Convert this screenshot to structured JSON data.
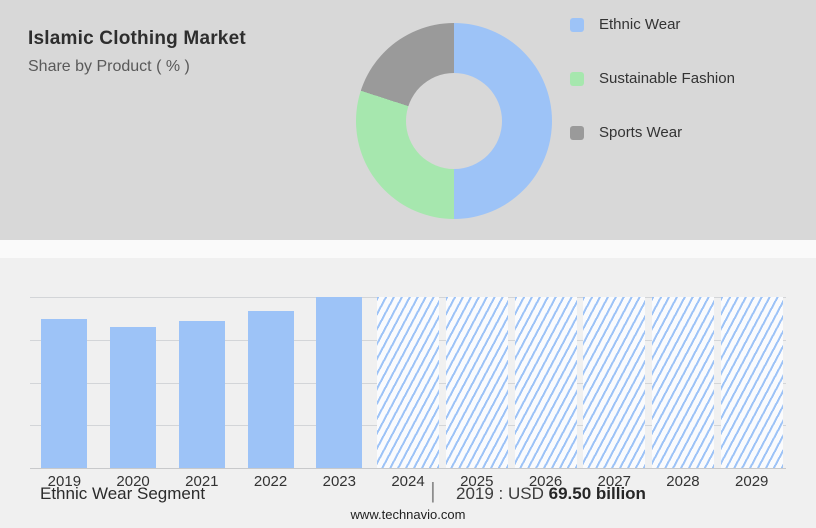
{
  "header": {
    "title": "Islamic Clothing Market",
    "subtitle": "Share by Product ( % )"
  },
  "chart_data": [
    {
      "type": "pie",
      "donut": true,
      "title": "Share by Product ( % )",
      "labels": [
        "Ethnic Wear",
        "Sustainable Fashion",
        "Sports Wear"
      ],
      "values": [
        50,
        30,
        20
      ],
      "colors": [
        "#9dc3f7",
        "#a6e7ae",
        "#9a9a9a"
      ],
      "legend_position": "right"
    },
    {
      "type": "bar",
      "categories": [
        "2019",
        "2020",
        "2021",
        "2022",
        "2023",
        "2024",
        "2025",
        "2026",
        "2027",
        "2028",
        "2029"
      ],
      "values": [
        69.5,
        66.2,
        69.0,
        73.6,
        80.0,
        null,
        null,
        null,
        null,
        null,
        null
      ],
      "ymax": 80,
      "ylim": [
        0,
        80
      ],
      "bar_color": "#9dc3f7",
      "hatch_color": "#9dc3f7",
      "grid": true,
      "forecast_note": "2024-2029 drawn as full-height hatched forecast columns (no labeled values)"
    }
  ],
  "footer": {
    "segment_label": "Ethnic Wear Segment",
    "divider": "|",
    "value_prefix": "2019 : USD",
    "value_bold": "69.50 billion",
    "website": "www.technavio.com"
  }
}
